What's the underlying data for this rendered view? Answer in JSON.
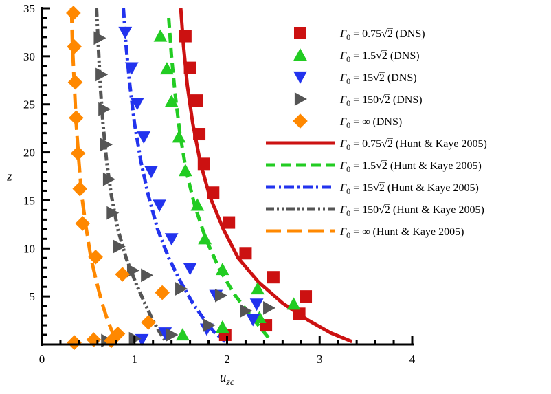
{
  "chart_data": {
    "type": "scatter",
    "title": "",
    "xlabel": "u_zc",
    "ylabel": "z",
    "xlim": [
      0,
      4
    ],
    "ylim": [
      0,
      35
    ],
    "x_ticks": [
      "0",
      "1",
      "2",
      "3",
      "4"
    ],
    "y_ticks": [
      "5",
      "10",
      "15",
      "20",
      "25",
      "30",
      "35"
    ],
    "grid": false,
    "legend_position": "top-right",
    "series": [
      {
        "name": "Γ0 = 0.75√2 (DNS)",
        "kind": "markers",
        "marker": "square",
        "color": "#cc1111",
        "x": [
          1.55,
          1.6,
          1.67,
          1.7,
          1.75,
          1.85,
          2.02,
          2.2,
          2.5,
          2.85,
          2.78,
          2.42,
          1.98
        ],
        "y": [
          32.1,
          28.8,
          25.4,
          21.9,
          18.8,
          15.8,
          12.7,
          9.5,
          7.0,
          5.0,
          3.2,
          2.0,
          1.0
        ]
      },
      {
        "name": "Γ0 = 1.5√2 (DNS)",
        "kind": "markers",
        "marker": "triangle-up",
        "color": "#22cc22",
        "x": [
          1.28,
          1.35,
          1.4,
          1.48,
          1.55,
          1.68,
          1.76,
          1.95,
          2.33,
          2.72,
          2.35,
          1.95,
          1.52
        ],
        "y": [
          32.1,
          28.7,
          25.3,
          21.6,
          18.1,
          14.5,
          11.0,
          7.8,
          5.8,
          4.2,
          2.8,
          1.8,
          1.0
        ]
      },
      {
        "name": "Γ0 = 15√2 (DNS)",
        "kind": "markers",
        "marker": "triangle-down",
        "color": "#2233ee",
        "x": [
          0.9,
          0.97,
          1.03,
          1.1,
          1.18,
          1.27,
          1.4,
          1.6,
          1.88,
          2.32,
          2.28,
          1.78,
          1.33,
          1.08
        ],
        "y": [
          32.5,
          28.8,
          25.1,
          21.6,
          18.0,
          14.5,
          11.0,
          7.9,
          5.1,
          4.2,
          2.6,
          1.6,
          1.2,
          0.5
        ]
      },
      {
        "name": "Γ0 = 150√2 (DNS)",
        "kind": "markers",
        "marker": "triangle-right",
        "color": "#555555",
        "x": [
          0.62,
          0.64,
          0.67,
          0.69,
          0.72,
          0.76,
          0.83,
          0.98,
          1.13,
          1.5,
          1.93,
          2.2,
          2.45,
          1.8,
          1.4,
          1.0,
          0.7
        ],
        "y": [
          31.9,
          28.1,
          24.5,
          20.8,
          17.2,
          13.7,
          10.2,
          7.7,
          7.2,
          5.8,
          5.1,
          3.5,
          3.8,
          2.0,
          1.0,
          0.6,
          0.4
        ]
      },
      {
        "name": "Γ0 = ∞ (DNS)",
        "kind": "markers",
        "marker": "diamond",
        "color": "#ff8800",
        "x": [
          0.34,
          0.35,
          0.36,
          0.37,
          0.39,
          0.41,
          0.44,
          0.58,
          0.87,
          1.3,
          1.15,
          0.82,
          0.75,
          0.56,
          0.35
        ],
        "y": [
          34.5,
          31.0,
          27.3,
          23.6,
          19.9,
          16.2,
          12.6,
          9.1,
          7.3,
          5.4,
          2.3,
          1.1,
          0.4,
          0.5,
          0.2
        ]
      },
      {
        "name": "Γ0 = 0.75√2 (Hunt & Kaye 2005)",
        "kind": "line",
        "dash": "solid",
        "color": "#cc1111",
        "x": [
          1.5,
          1.53,
          1.57,
          1.63,
          1.71,
          1.81,
          1.96,
          2.12,
          2.34,
          2.6,
          2.88,
          3.12,
          3.35
        ],
        "y": [
          35,
          31,
          27,
          23,
          19,
          15.5,
          12,
          9,
          6.5,
          4.3,
          2.5,
          1.2,
          0.3
        ]
      },
      {
        "name": "Γ0 = 1.5√2 (Hunt & Kaye 2005)",
        "kind": "line",
        "dash": "dash",
        "color": "#22cc22",
        "x": [
          1.37,
          1.4,
          1.44,
          1.49,
          1.56,
          1.65,
          1.77,
          1.92,
          2.08,
          2.24,
          2.38,
          2.48
        ],
        "y": [
          34,
          30,
          26,
          22,
          18,
          14.5,
          11,
          7.8,
          5.2,
          3.2,
          1.5,
          0.3
        ]
      },
      {
        "name": "Γ0 = 15√2 (Hunt & Kaye 2005)",
        "kind": "line",
        "dash": "dashdot",
        "color": "#2233ee",
        "x": [
          0.88,
          0.91,
          0.95,
          1.0,
          1.07,
          1.15,
          1.25,
          1.37,
          1.5,
          1.63,
          1.76,
          1.86,
          1.98
        ],
        "y": [
          35,
          31,
          27,
          23,
          19,
          15.5,
          12,
          9,
          6.5,
          4.3,
          2.5,
          1.3,
          0.3
        ]
      },
      {
        "name": "Γ0 = 150√2 (Hunt & Kaye 2005)",
        "kind": "line",
        "dash": "dashdotdot",
        "color": "#555555",
        "x": [
          0.59,
          0.61,
          0.63,
          0.66,
          0.7,
          0.75,
          0.82,
          0.91,
          1.01,
          1.11,
          1.2,
          1.27,
          1.34
        ],
        "y": [
          35,
          31,
          27,
          23,
          19,
          15.5,
          12,
          9,
          6.5,
          4.3,
          2.5,
          1.3,
          0.3
        ]
      },
      {
        "name": "Γ0 = ∞ (Hunt & Kaye 2005)",
        "kind": "line",
        "dash": "longdash",
        "color": "#ff8800",
        "x": [
          0.32,
          0.33,
          0.35,
          0.37,
          0.4,
          0.43,
          0.48,
          0.53,
          0.59,
          0.65,
          0.71,
          0.76,
          0.82
        ],
        "y": [
          35,
          31,
          27,
          23,
          19,
          15.5,
          12,
          9,
          6.5,
          4.3,
          2.5,
          1.3,
          0.3
        ]
      }
    ]
  }
}
